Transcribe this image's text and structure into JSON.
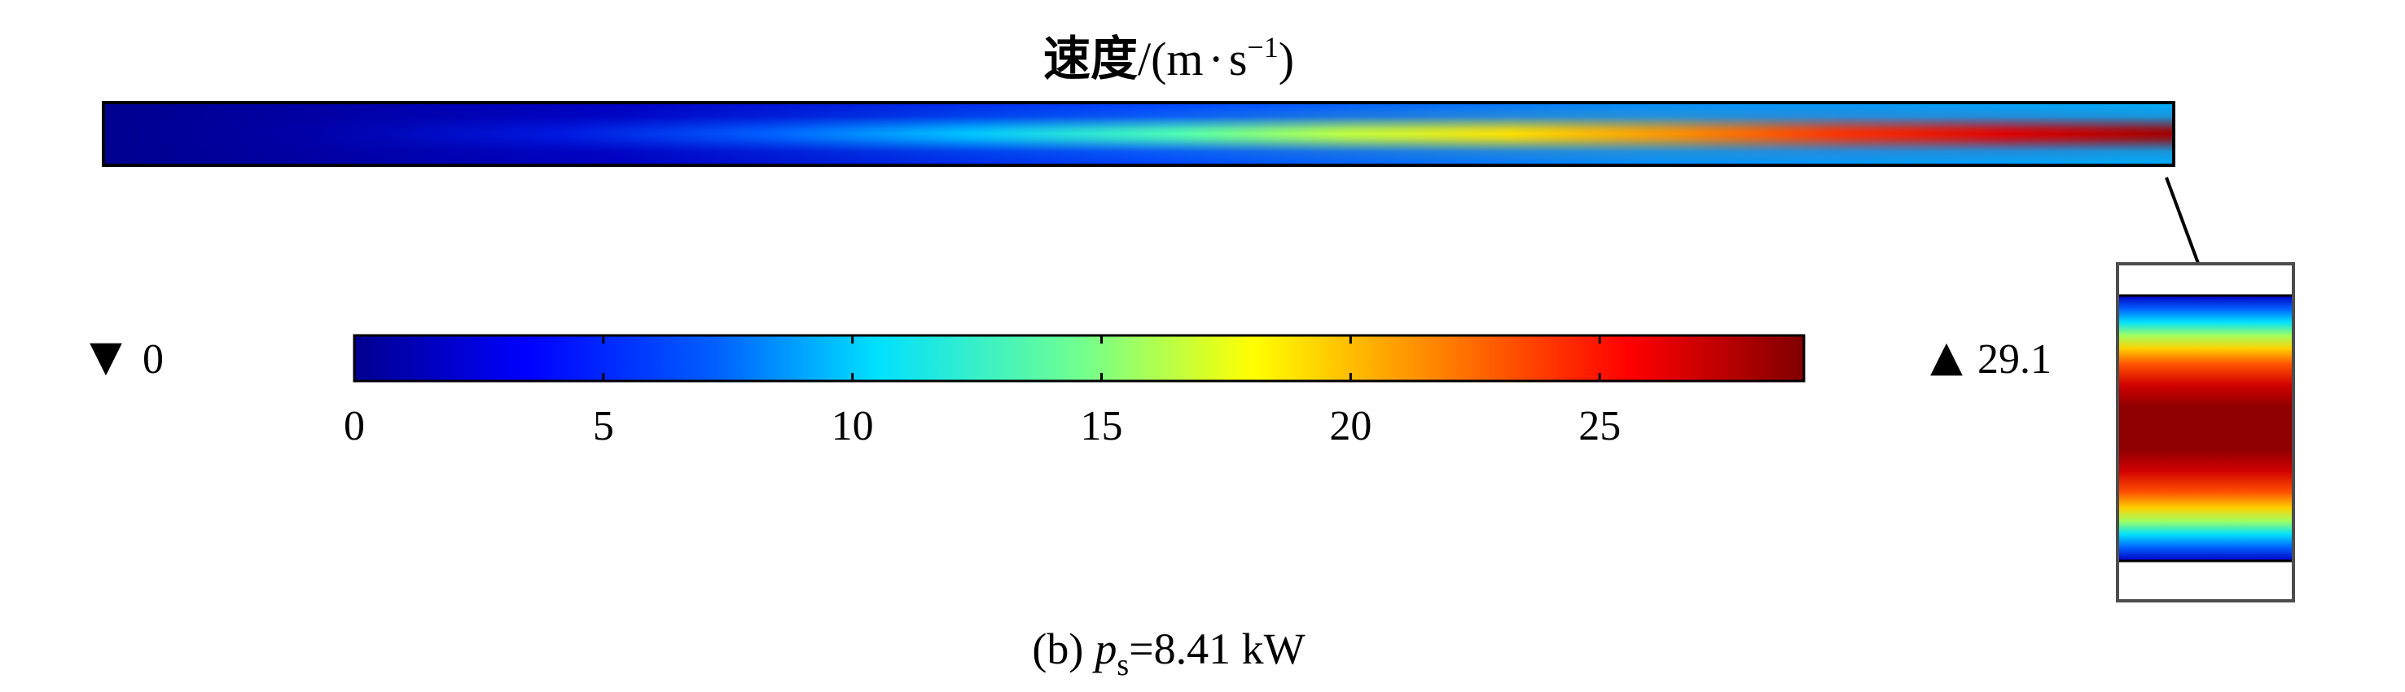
{
  "chart_data": {
    "type": "heatmap",
    "title": {
      "cn": "速度",
      "unit_prefix": "/(m",
      "dot": "·",
      "unit_s": "s",
      "unit_exp": "−1",
      "unit_suffix": ")"
    },
    "quantity": "速度",
    "unit": "m·s⁻¹",
    "colormap": "jet",
    "colorbar": {
      "range": [
        0,
        29.1
      ],
      "ticks": [
        0,
        5,
        10,
        15,
        20,
        25
      ],
      "tick_labels": [
        "0",
        "5",
        "10",
        "15",
        "20",
        "25"
      ]
    },
    "min": {
      "symbol": "▼",
      "value": "0"
    },
    "max": {
      "symbol": "▲",
      "value": "29.1"
    },
    "field": {
      "orientation": "horizontal channel, flow left to right",
      "axial_centerline_velocity": [
        {
          "s": 0.0,
          "v": 2
        },
        {
          "s": 0.1,
          "v": 3
        },
        {
          "s": 0.2,
          "v": 5
        },
        {
          "s": 0.3,
          "v": 7
        },
        {
          "s": 0.4,
          "v": 10
        },
        {
          "s": 0.5,
          "v": 13
        },
        {
          "s": 0.6,
          "v": 17
        },
        {
          "s": 0.7,
          "v": 21
        },
        {
          "s": 0.8,
          "v": 24
        },
        {
          "s": 0.9,
          "v": 27
        },
        {
          "s": 1.0,
          "v": 29.1
        }
      ],
      "wall_velocity": 0
    },
    "caption": {
      "panel": "(b)",
      "var": "p",
      "sub": "s",
      "value": "=8.41 kW"
    }
  },
  "colors": {
    "jet": [
      "#00008f",
      "#0000ff",
      "#0080ff",
      "#00ffff",
      "#80ff80",
      "#ffff00",
      "#ff8000",
      "#ff0000",
      "#800000"
    ],
    "outline": "#000000",
    "frame": "#4d4d4d"
  }
}
